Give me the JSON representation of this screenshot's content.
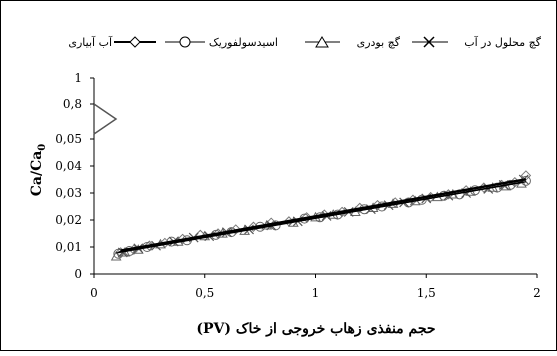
{
  "chart_data": {
    "type": "scatter",
    "xlabel": "حجم منفذی زهاب خروجی از خاک (PV)",
    "ylabel": "Ca/Ca0",
    "ylabel_main": "Ca/Ca",
    "ylabel_sub": "0",
    "xlim": [
      0,
      2
    ],
    "x_ticks": [
      "0",
      "0,5",
      "1",
      "1,5",
      "2"
    ],
    "x_tick_values": [
      0,
      0.5,
      1,
      1.5,
      2
    ],
    "y_ticks": [
      "0",
      "0,01",
      "0,02",
      "0,03",
      "0,04",
      "0,05",
      "0,8",
      "1"
    ],
    "y_tick_values": [
      0,
      0.01,
      0.02,
      0.03,
      0.04,
      0.05,
      0.8,
      1
    ],
    "y_axis_break": "between 0,05 and 0,8",
    "grid": false,
    "legend_position": "top",
    "legend": [
      "آب آبیاری",
      "اسیدسولفوریک",
      "گچ بودری",
      "گچ محلول در آب"
    ],
    "series": [
      {
        "name": "آب آبیاری",
        "marker": "diamond",
        "x": [
          0.12,
          0.18,
          0.25,
          0.32,
          0.4,
          0.48,
          0.56,
          0.64,
          0.72,
          0.8,
          0.88,
          0.96,
          1.04,
          1.12,
          1.2,
          1.28,
          1.36,
          1.44,
          1.52,
          1.6,
          1.68,
          1.76,
          1.84,
          1.9,
          1.95
        ],
        "y": [
          0.008,
          0.009,
          0.0105,
          0.0115,
          0.013,
          0.0145,
          0.015,
          0.0165,
          0.0175,
          0.019,
          0.0195,
          0.021,
          0.022,
          0.023,
          0.0245,
          0.0255,
          0.0265,
          0.0275,
          0.0285,
          0.0295,
          0.031,
          0.032,
          0.033,
          0.034,
          0.0365
        ]
      },
      {
        "name": "اسیدسولفوریک",
        "marker": "circle",
        "x": [
          0.11,
          0.16,
          0.24,
          0.35,
          0.42,
          0.55,
          0.62,
          0.75,
          0.82,
          0.95,
          1.02,
          1.1,
          1.22,
          1.3,
          1.42,
          1.48,
          1.58,
          1.65,
          1.72,
          1.82,
          1.88,
          1.95
        ],
        "y": [
          0.0075,
          0.0085,
          0.01,
          0.012,
          0.0125,
          0.0145,
          0.0155,
          0.0175,
          0.018,
          0.0205,
          0.021,
          0.022,
          0.024,
          0.025,
          0.0265,
          0.0275,
          0.029,
          0.0295,
          0.031,
          0.032,
          0.033,
          0.0345
        ]
      },
      {
        "name": "گچ بودری",
        "marker": "triangle",
        "x": [
          0.1,
          0.14,
          0.2,
          0.3,
          0.38,
          0.5,
          0.58,
          0.68,
          0.78,
          0.9,
          1.0,
          1.08,
          1.18,
          1.26,
          1.35,
          1.45,
          1.55,
          1.62,
          1.7,
          1.8,
          1.86,
          1.93
        ],
        "y": [
          0.0065,
          0.008,
          0.009,
          0.011,
          0.012,
          0.014,
          0.015,
          0.016,
          0.018,
          0.019,
          0.021,
          0.022,
          0.023,
          0.0245,
          0.026,
          0.027,
          0.0285,
          0.0295,
          0.0305,
          0.032,
          0.0325,
          0.0335
        ]
      },
      {
        "name": "گچ محلول در آب",
        "marker": "x",
        "x": [
          0.13,
          0.2,
          0.28,
          0.36,
          0.45,
          0.52,
          0.6,
          0.7,
          0.8,
          0.92,
          1.05,
          1.15,
          1.25,
          1.33,
          1.4,
          1.5,
          1.6,
          1.68,
          1.78,
          1.85,
          1.94
        ],
        "y": [
          0.008,
          0.0095,
          0.0105,
          0.012,
          0.0135,
          0.014,
          0.0155,
          0.0165,
          0.018,
          0.0195,
          0.0215,
          0.023,
          0.024,
          0.0255,
          0.0265,
          0.028,
          0.029,
          0.03,
          0.0315,
          0.033,
          0.035
        ]
      }
    ]
  }
}
